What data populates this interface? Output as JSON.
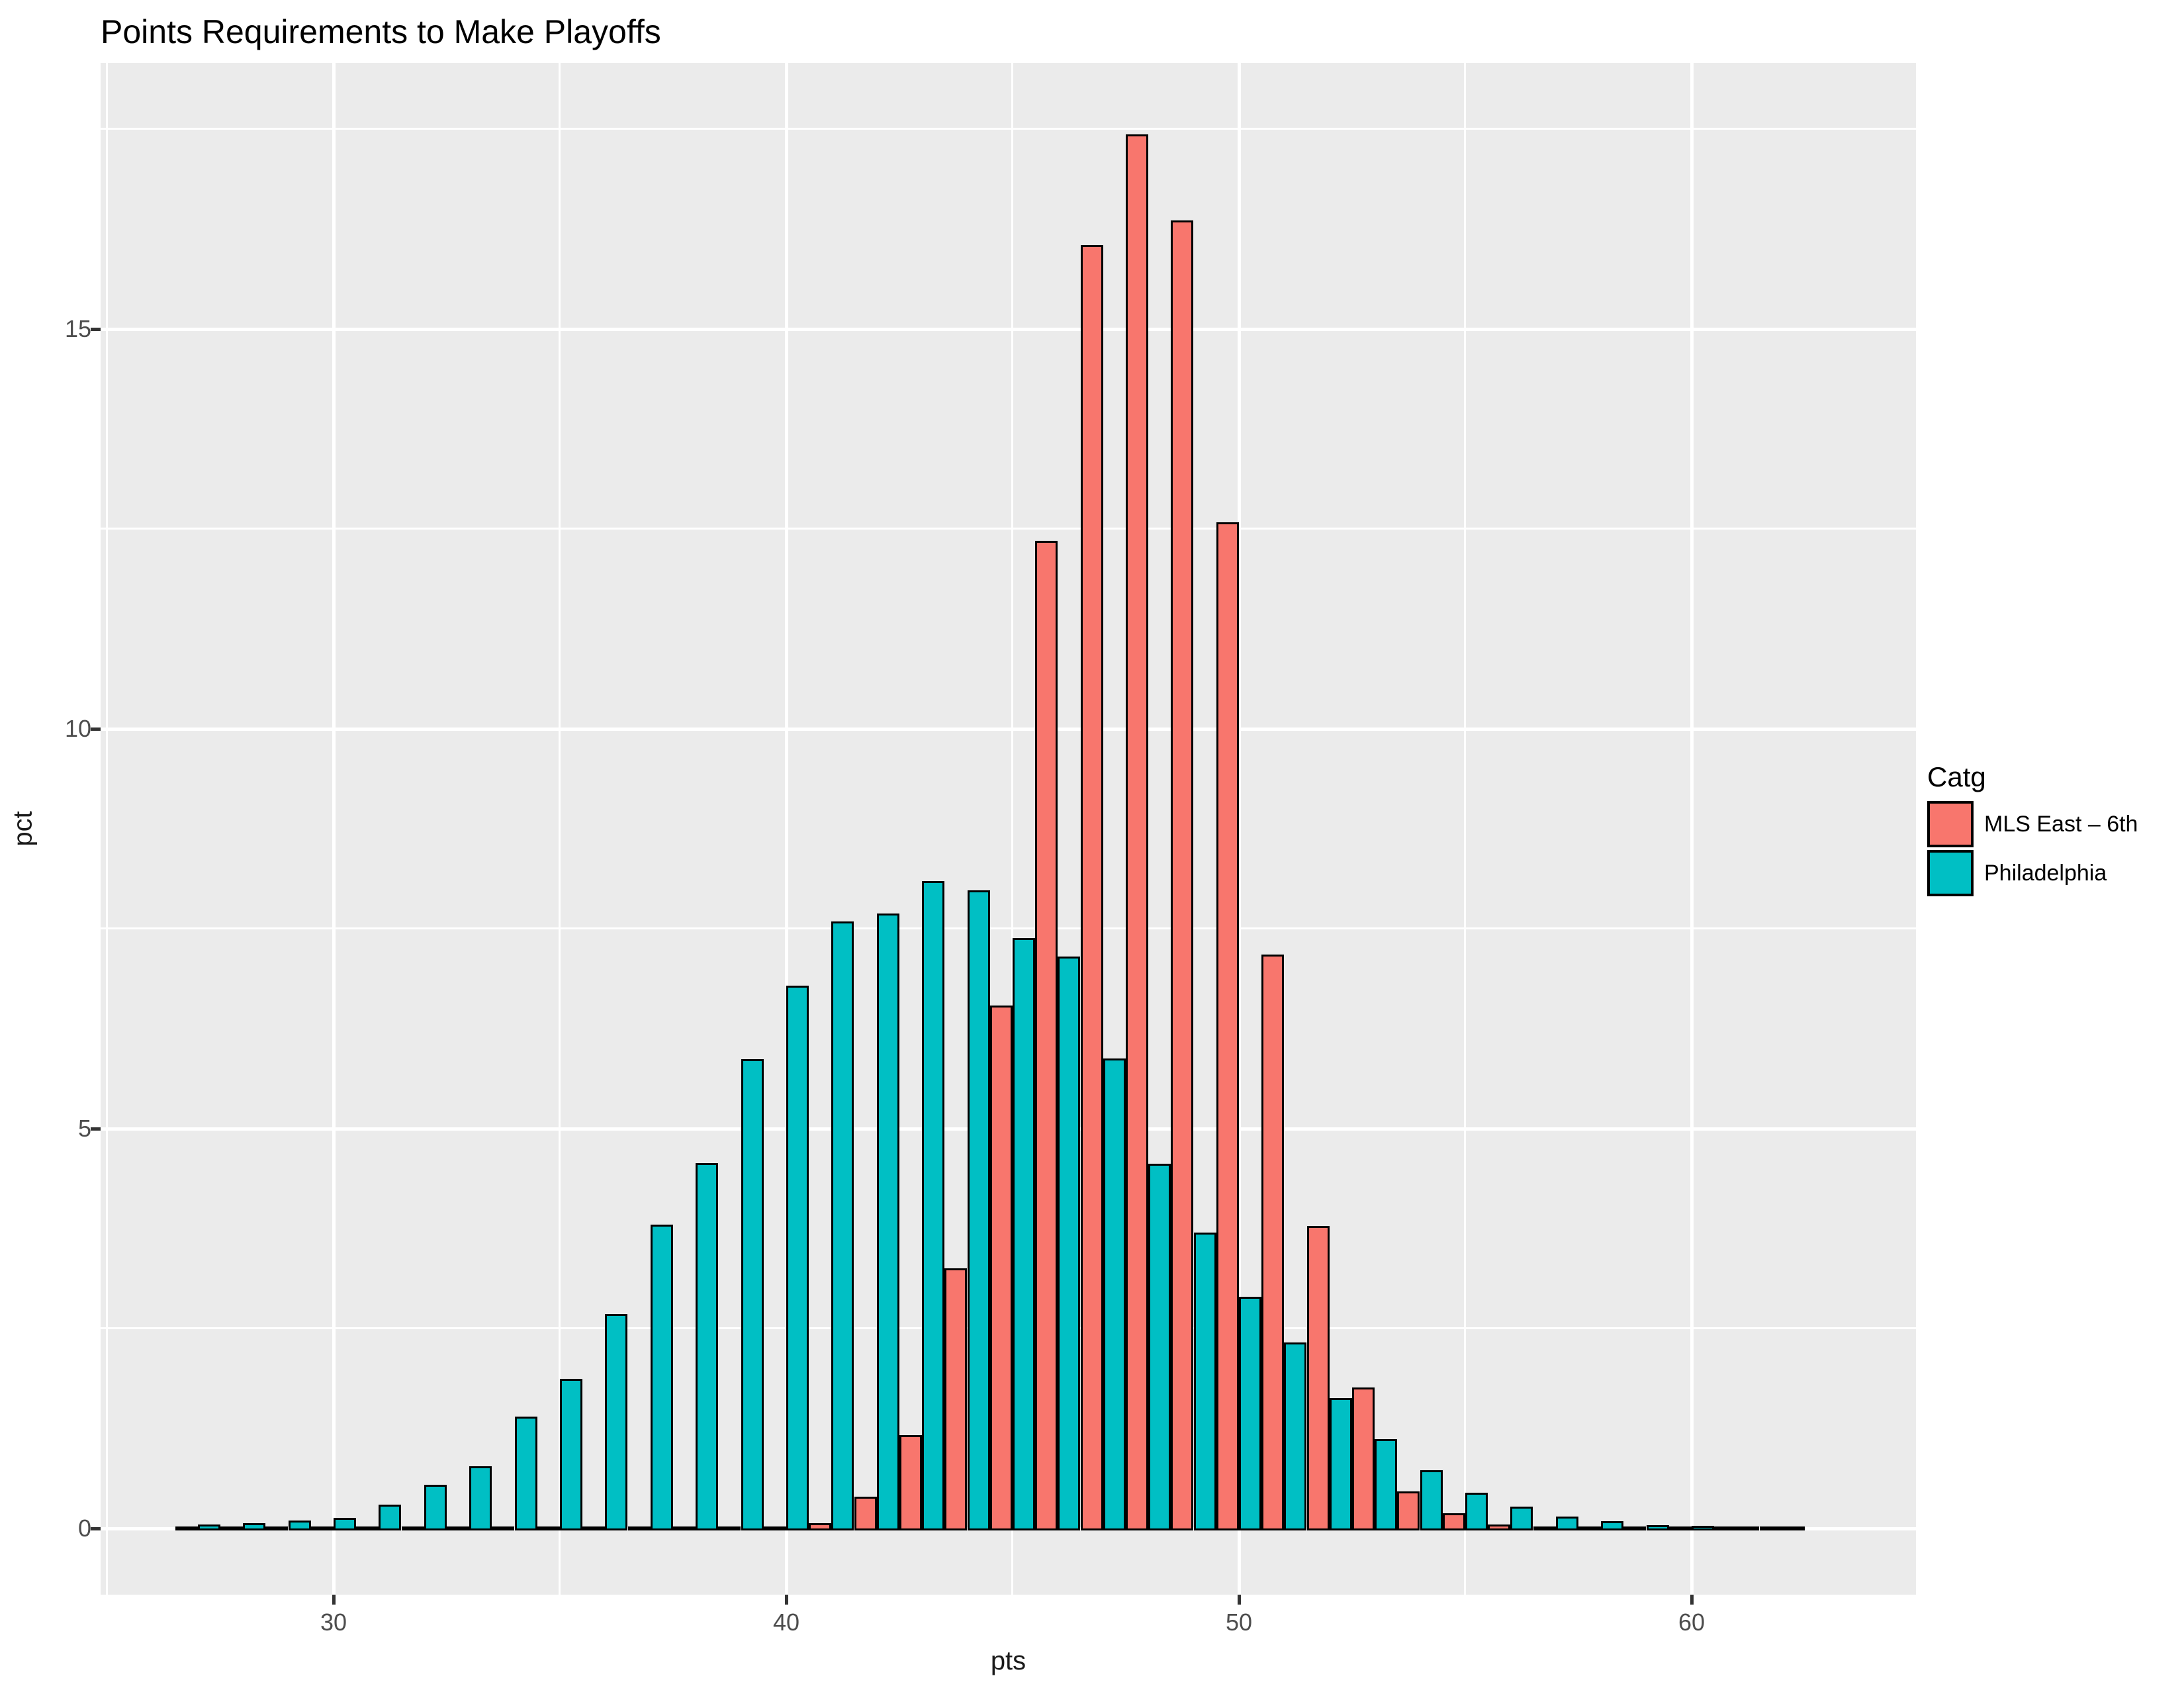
{
  "title": "Points Requirements to Make Playoffs",
  "axes": {
    "x_label": "pts",
    "y_label": "pct",
    "x_tick_labels": [
      "30",
      "40",
      "50",
      "60"
    ],
    "y_tick_labels": [
      "0",
      "5",
      "10",
      "15"
    ]
  },
  "legend": {
    "title": "Catg",
    "entries": [
      {
        "label": "MLS East – 6th",
        "color": "#F8766D"
      },
      {
        "label": "Philadelphia",
        "color": "#00BFC4"
      }
    ]
  },
  "colors": {
    "panel_bg": "#EBEBEB",
    "gridline": "#FFFFFF",
    "bar_outline": "#000000",
    "tick_mark": "#333333",
    "tick_label": "#4D4D4D",
    "mls_east_6th": "#F8766D",
    "philadelphia": "#00BFC4"
  },
  "chart_data": {
    "type": "bar",
    "subtype": "dodged-histogram",
    "title": "Points Requirements to Make Playoffs",
    "xlabel": "pts",
    "ylabel": "pct",
    "xlim": [
      25,
      65
    ],
    "ylim": [
      -0.85,
      18.3
    ],
    "x_major_ticks": [
      30,
      40,
      50,
      60
    ],
    "y_major_ticks": [
      0,
      5,
      10,
      15
    ],
    "x_minor_gridlines": [
      25,
      35,
      45,
      55
    ],
    "y_minor_gridlines": [
      2.5,
      7.5,
      12.5,
      17.5
    ],
    "grid": true,
    "legend_position": "right",
    "bin_width": 1,
    "categories": [
      27,
      28,
      29,
      30,
      31,
      32,
      33,
      34,
      35,
      36,
      37,
      38,
      39,
      40,
      41,
      42,
      43,
      44,
      45,
      46,
      47,
      48,
      49,
      50,
      51,
      52,
      53,
      54,
      55,
      56,
      57,
      58,
      59,
      60,
      61,
      62
    ],
    "series": [
      {
        "name": "MLS East – 6th",
        "key": "mls",
        "color": "#F8766D",
        "values": [
          0,
          0,
          0,
          0,
          0,
          0,
          0,
          0,
          0,
          0,
          0,
          0,
          0,
          0.01,
          0.07,
          0.4,
          1.17,
          3.25,
          6.54,
          12.35,
          16.05,
          17.43,
          16.36,
          12.58,
          7.18,
          3.78,
          1.76,
          0.46,
          0.19,
          0.05,
          0.02,
          0.01,
          0,
          0,
          0,
          0
        ]
      },
      {
        "name": "Philadelphia",
        "key": "phl",
        "color": "#00BFC4",
        "values": [
          0.05,
          0.07,
          0.1,
          0.13,
          0.3,
          0.55,
          0.78,
          1.4,
          1.87,
          2.68,
          3.8,
          4.57,
          5.87,
          6.79,
          7.59,
          7.69,
          8.1,
          7.98,
          7.38,
          7.15,
          5.88,
          4.56,
          3.7,
          2.9,
          2.33,
          1.63,
          1.12,
          0.73,
          0.45,
          0.27,
          0.15,
          0.09,
          0.04,
          0.03,
          0.02,
          0.01
        ]
      }
    ]
  }
}
